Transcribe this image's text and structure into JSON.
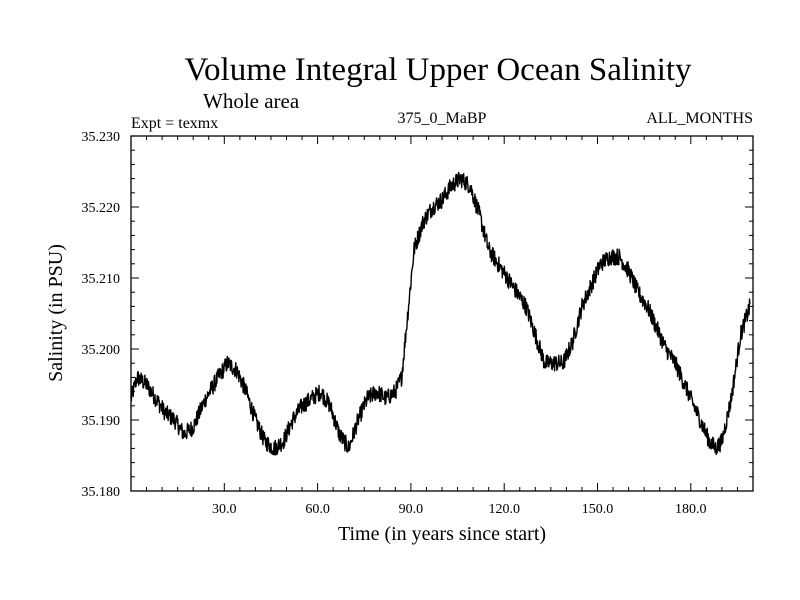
{
  "chart_data": {
    "type": "line",
    "title": "Volume Integral Upper Ocean Salinity",
    "subtitle": "Whole area",
    "experiment_label": "Expt = texmx",
    "run_label": "375_0_MaBP",
    "period_label": "ALL_MONTHS",
    "xlabel": "Time (in years since start)",
    "ylabel": "Salinity (in PSU)",
    "xlim": [
      0,
      200
    ],
    "ylim": [
      35.18,
      35.23
    ],
    "x_ticks": [
      30,
      60,
      90,
      120,
      150,
      180
    ],
    "x_tick_labels": [
      "30.0",
      "60.0",
      "90.0",
      "120.0",
      "150.0",
      "180.0"
    ],
    "y_ticks": [
      35.18,
      35.19,
      35.2,
      35.21,
      35.22,
      35.23
    ],
    "y_tick_labels": [
      "35.180",
      "35.190",
      "35.200",
      "35.210",
      "35.220",
      "35.230"
    ],
    "grid": false,
    "series": [
      {
        "name": "salinity",
        "noise_amplitude": 0.0012,
        "x": [
          0,
          2,
          5,
          8,
          11,
          14,
          17,
          20,
          24,
          28,
          31,
          34,
          37,
          40,
          43,
          46,
          49,
          52,
          55,
          58,
          61,
          64,
          67,
          70,
          73,
          76,
          79,
          82,
          85,
          87,
          89,
          91,
          94,
          97,
          100,
          103,
          106,
          109,
          112,
          115,
          118,
          121,
          124,
          127,
          130,
          133,
          136,
          139,
          142,
          145,
          148,
          151,
          154,
          157,
          160,
          163,
          166,
          169,
          172,
          175,
          178,
          181,
          184,
          186,
          188,
          190,
          193,
          196,
          199
        ],
        "values": [
          35.193,
          35.196,
          35.195,
          35.193,
          35.191,
          35.19,
          35.188,
          35.189,
          35.193,
          35.196,
          35.198,
          35.197,
          35.194,
          35.19,
          35.187,
          35.186,
          35.187,
          35.19,
          35.192,
          35.193,
          35.194,
          35.192,
          35.188,
          35.186,
          35.19,
          35.193,
          35.194,
          35.193,
          35.194,
          35.196,
          35.205,
          35.214,
          35.218,
          35.22,
          35.221,
          35.223,
          35.224,
          35.223,
          35.219,
          35.214,
          35.212,
          35.21,
          35.208,
          35.206,
          35.202,
          35.198,
          35.198,
          35.198,
          35.201,
          35.206,
          35.209,
          35.212,
          35.213,
          35.213,
          35.211,
          35.208,
          35.206,
          35.203,
          35.2,
          35.198,
          35.195,
          35.192,
          35.189,
          35.187,
          35.186,
          35.187,
          35.193,
          35.202,
          35.206
        ]
      }
    ]
  }
}
